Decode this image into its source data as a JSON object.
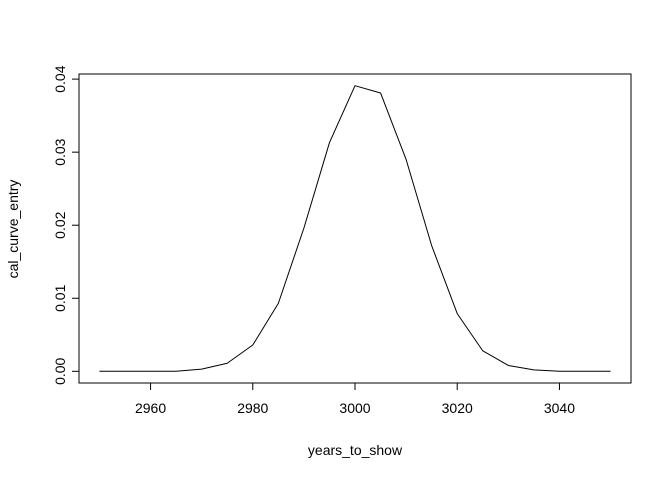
{
  "chart_data": {
    "type": "line",
    "title": "",
    "xlabel": "years_to_show",
    "ylabel": "cal_curve_entry",
    "xlim": [
      2946,
      3054
    ],
    "ylim": [
      -0.0016,
      0.0407
    ],
    "x_ticks": [
      2960,
      2980,
      3000,
      3020,
      3040
    ],
    "y_ticks": [
      0.0,
      0.01,
      0.02,
      0.03,
      0.04
    ],
    "x_tick_labels": [
      "2960",
      "2980",
      "3000",
      "3020",
      "3040"
    ],
    "y_tick_labels": [
      "0.00",
      "0.01",
      "0.02",
      "0.03",
      "0.04"
    ],
    "grid": false,
    "legend": "none",
    "line_color": "#000000",
    "series": [
      {
        "x": [
          2950,
          2955,
          2960,
          2965,
          2970,
          2975,
          2980,
          2985,
          2990,
          2995,
          3000,
          3005,
          3010,
          3015,
          3020,
          3025,
          3030,
          3035,
          3040,
          3045,
          3050
        ],
        "values": [
          0.0,
          0.0,
          0.0,
          0.0,
          0.0003,
          0.0011,
          0.0036,
          0.0093,
          0.0196,
          0.0313,
          0.0391,
          0.0381,
          0.029,
          0.0172,
          0.0079,
          0.0028,
          0.0008,
          0.0002,
          0.0,
          0.0,
          0.0
        ]
      }
    ]
  }
}
